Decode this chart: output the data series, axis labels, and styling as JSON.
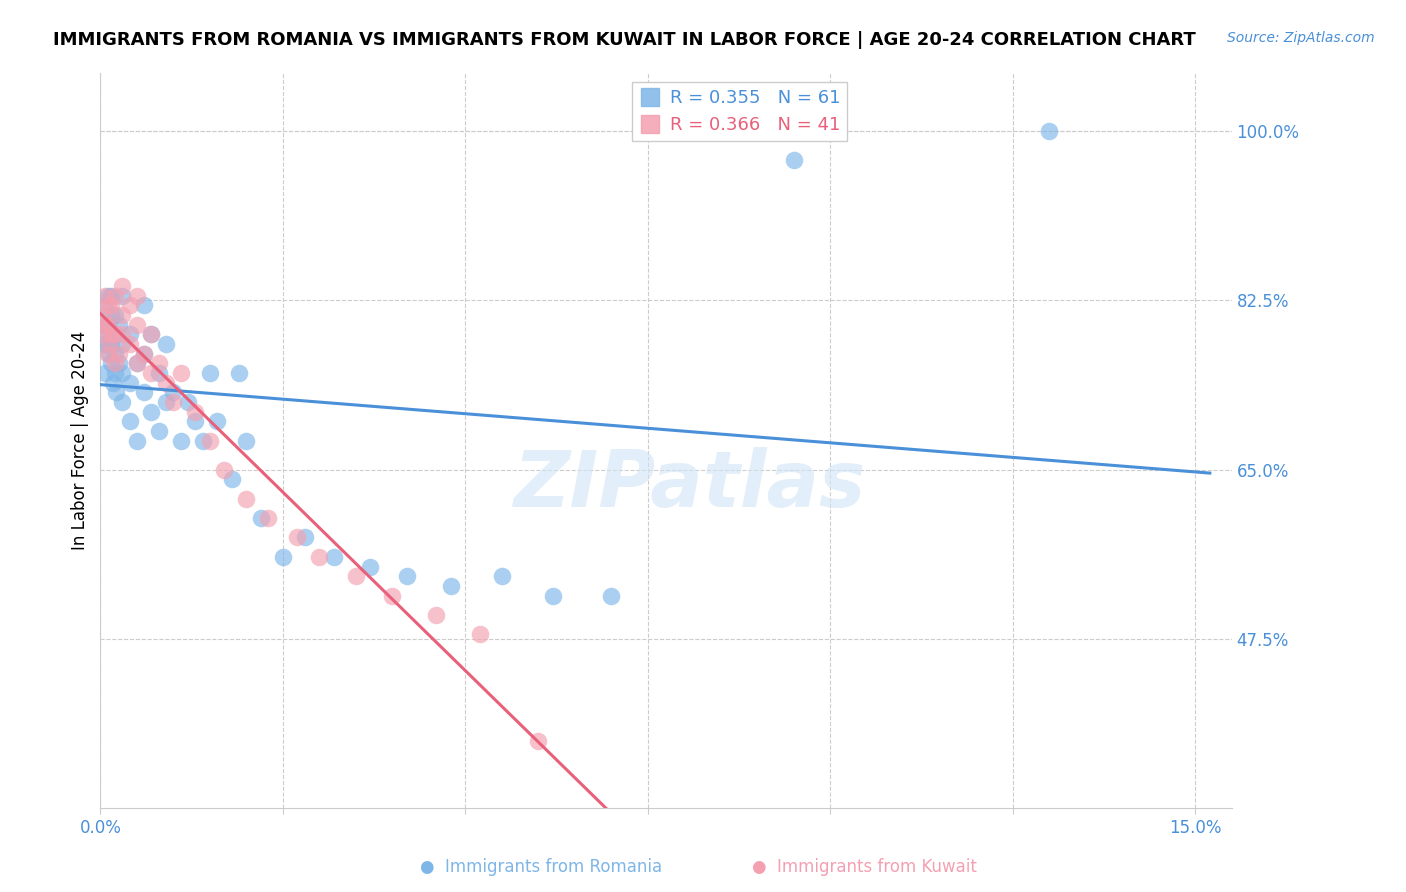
{
  "title": "IMMIGRANTS FROM ROMANIA VS IMMIGRANTS FROM KUWAIT IN LABOR FORCE | AGE 20-24 CORRELATION CHART",
  "source": "Source: ZipAtlas.com",
  "ylabel": "In Labor Force | Age 20-24",
  "romania_color": "#7EB6E8",
  "kuwait_color": "#F4A0B0",
  "romania_line_color": "#4A90D9",
  "kuwait_line_color": "#E8607A",
  "romania_R": 0.355,
  "romania_N": 61,
  "kuwait_R": 0.366,
  "kuwait_N": 41,
  "legend_label_romania": "Immigrants from Romania",
  "legend_label_kuwait": "Immigrants from Kuwait",
  "xlim": [
    0.0,
    0.155
  ],
  "ylim": [
    0.3,
    1.06
  ],
  "xtick_positions": [
    0.0,
    0.025,
    0.05,
    0.075,
    0.1,
    0.125,
    0.15
  ],
  "xtick_labels": [
    "0.0%",
    "",
    "",
    "",
    "",
    "",
    "15.0%"
  ],
  "ytick_positions": [
    0.475,
    0.65,
    0.825,
    1.0
  ],
  "ytick_labels": [
    "47.5%",
    "65.0%",
    "82.5%",
    "100.0%"
  ],
  "romania_x": [
    0.0005,
    0.0005,
    0.0005,
    0.0007,
    0.001,
    0.001,
    0.001,
    0.0012,
    0.0012,
    0.0015,
    0.0015,
    0.0015,
    0.0015,
    0.0018,
    0.002,
    0.002,
    0.002,
    0.002,
    0.0022,
    0.0025,
    0.0025,
    0.003,
    0.003,
    0.003,
    0.003,
    0.004,
    0.004,
    0.004,
    0.005,
    0.005,
    0.006,
    0.006,
    0.006,
    0.007,
    0.007,
    0.008,
    0.008,
    0.009,
    0.009,
    0.01,
    0.011,
    0.012,
    0.013,
    0.014,
    0.015,
    0.016,
    0.018,
    0.019,
    0.02,
    0.022,
    0.025,
    0.028,
    0.032,
    0.037,
    0.042,
    0.048,
    0.055,
    0.062,
    0.07,
    0.095,
    0.13
  ],
  "romania_y": [
    0.78,
    0.8,
    0.82,
    0.75,
    0.78,
    0.8,
    0.83,
    0.77,
    0.79,
    0.76,
    0.78,
    0.81,
    0.83,
    0.74,
    0.75,
    0.77,
    0.79,
    0.81,
    0.73,
    0.76,
    0.8,
    0.72,
    0.75,
    0.78,
    0.83,
    0.7,
    0.74,
    0.79,
    0.68,
    0.76,
    0.73,
    0.77,
    0.82,
    0.71,
    0.79,
    0.69,
    0.75,
    0.72,
    0.78,
    0.73,
    0.68,
    0.72,
    0.7,
    0.68,
    0.75,
    0.7,
    0.64,
    0.75,
    0.68,
    0.6,
    0.56,
    0.58,
    0.56,
    0.55,
    0.54,
    0.53,
    0.54,
    0.52,
    0.52,
    0.97,
    1.0
  ],
  "kuwait_x": [
    0.0003,
    0.0005,
    0.0007,
    0.0008,
    0.001,
    0.001,
    0.001,
    0.0012,
    0.0015,
    0.0015,
    0.002,
    0.002,
    0.002,
    0.0025,
    0.003,
    0.003,
    0.003,
    0.004,
    0.004,
    0.005,
    0.005,
    0.005,
    0.006,
    0.007,
    0.007,
    0.008,
    0.009,
    0.01,
    0.011,
    0.013,
    0.015,
    0.017,
    0.02,
    0.023,
    0.027,
    0.03,
    0.035,
    0.04,
    0.046,
    0.052,
    0.06
  ],
  "kuwait_y": [
    0.79,
    0.81,
    0.83,
    0.8,
    0.77,
    0.8,
    0.82,
    0.78,
    0.79,
    0.82,
    0.76,
    0.79,
    0.83,
    0.77,
    0.79,
    0.81,
    0.84,
    0.78,
    0.82,
    0.76,
    0.8,
    0.83,
    0.77,
    0.75,
    0.79,
    0.76,
    0.74,
    0.72,
    0.75,
    0.71,
    0.68,
    0.65,
    0.62,
    0.6,
    0.58,
    0.56,
    0.54,
    0.52,
    0.5,
    0.48,
    0.37
  ],
  "watermark_text": "ZIPatlas",
  "watermark_color": "#D0E4F5",
  "background_color": "#ffffff",
  "grid_color": "#cccccc",
  "tick_color": "#4A90D9",
  "title_fontsize": 13,
  "source_fontsize": 10,
  "axis_label_fontsize": 12,
  "legend_fontsize": 13
}
